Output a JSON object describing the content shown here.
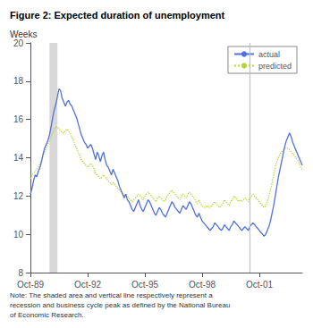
{
  "chart_data": {
    "type": "line",
    "title": "Figure 2: Expected duration of unemployment",
    "ylabel": "Weeks",
    "note": "Note: The shaded area and vertical line respectively represent a\nrecession and business cycle peak as defined by the National Bureau\nof Economic Research.",
    "ylim": [
      8,
      20
    ],
    "yticks": [
      8,
      10,
      12,
      14,
      16,
      18,
      20
    ],
    "grid": false,
    "legend": "upper right",
    "recession": [
      12,
      17
    ],
    "business_cycle_peak": 138,
    "categories": [
      "Oct-89",
      null,
      null,
      null,
      null,
      null,
      null,
      null,
      null,
      null,
      null,
      null,
      null,
      null,
      null,
      null,
      null,
      null,
      null,
      null,
      null,
      null,
      null,
      null,
      null,
      null,
      null,
      null,
      null,
      null,
      null,
      null,
      null,
      null,
      null,
      null,
      "Oct-92",
      null,
      null,
      null,
      null,
      null,
      null,
      null,
      null,
      null,
      null,
      null,
      null,
      null,
      null,
      null,
      null,
      null,
      null,
      null,
      null,
      null,
      null,
      null,
      null,
      null,
      null,
      null,
      null,
      null,
      null,
      null,
      null,
      null,
      null,
      null,
      "Oct-95",
      null,
      null,
      null,
      null,
      null,
      null,
      null,
      null,
      null,
      null,
      null,
      null,
      null,
      null,
      null,
      null,
      null,
      null,
      null,
      null,
      null,
      null,
      null,
      null,
      null,
      null,
      null,
      null,
      null,
      null,
      null,
      null,
      null,
      null,
      null,
      "Oct-98",
      null,
      null,
      null,
      null,
      null,
      null,
      null,
      null,
      null,
      null,
      null,
      null,
      null,
      null,
      null,
      null,
      null,
      null,
      null,
      null,
      null,
      null,
      null,
      null,
      null,
      null,
      null,
      null,
      null,
      null,
      null,
      null,
      null,
      null,
      null,
      "Oct-01",
      null,
      null,
      null,
      null,
      null,
      null,
      null,
      null,
      null,
      null,
      null,
      null,
      null,
      null,
      null,
      null,
      null,
      null,
      null,
      null,
      null,
      null,
      null,
      null,
      null,
      null,
      null
    ],
    "series": [
      {
        "name": "actual",
        "line_style": "solid",
        "values": [
          12.1,
          12.4,
          12.8,
          13.1,
          13.0,
          13.3,
          13.5,
          13.8,
          14.2,
          14.5,
          14.7,
          14.9,
          15.2,
          15.6,
          16.1,
          16.5,
          16.8,
          17.2,
          17.6,
          17.5,
          17.1,
          16.9,
          16.7,
          16.9,
          17.0,
          16.8,
          16.7,
          16.5,
          16.3,
          16.1,
          15.8,
          15.5,
          15.2,
          15.0,
          14.8,
          14.7,
          14.5,
          14.6,
          14.7,
          14.5,
          14.2,
          13.9,
          14.3,
          14.1,
          13.8,
          14.1,
          14.3,
          13.9,
          13.6,
          13.5,
          13.3,
          13.1,
          13.4,
          13.2,
          13.0,
          12.8,
          12.5,
          12.3,
          12.1,
          11.9,
          12.1,
          11.8,
          11.7,
          11.5,
          11.3,
          11.2,
          11.4,
          11.6,
          11.8,
          11.5,
          11.3,
          11.2,
          11.4,
          11.6,
          11.8,
          11.7,
          11.5,
          11.3,
          11.1,
          11.0,
          11.2,
          11.4,
          11.3,
          11.1,
          11.0,
          10.9,
          11.1,
          11.3,
          11.5,
          11.7,
          11.6,
          11.4,
          11.3,
          11.2,
          11.1,
          11.3,
          11.5,
          11.4,
          11.3,
          11.5,
          11.7,
          11.6,
          11.4,
          11.2,
          11.0,
          10.9,
          11.1,
          10.9,
          10.7,
          10.6,
          10.5,
          10.4,
          10.3,
          10.2,
          10.3,
          10.4,
          10.6,
          10.5,
          10.4,
          10.3,
          10.2,
          10.3,
          10.5,
          10.4,
          10.3,
          10.2,
          10.4,
          10.5,
          10.7,
          10.6,
          10.5,
          10.4,
          10.3,
          10.2,
          10.3,
          10.4,
          10.3,
          10.2,
          10.4,
          10.5,
          10.6,
          10.5,
          10.4,
          10.3,
          10.2,
          10.1,
          10.0,
          9.9,
          10.0,
          10.2,
          10.4,
          10.7,
          11.1,
          11.5,
          12.0,
          12.5,
          13.0,
          13.4,
          13.8,
          14.2,
          14.6,
          14.9,
          15.1,
          15.3,
          15.1,
          14.8,
          14.6,
          14.4,
          14.2,
          14.0,
          13.8,
          13.6
        ]
      },
      {
        "name": "predicted",
        "line_style": "dotted",
        "values": [
          12.9,
          13.1,
          13.2,
          13.3,
          13.4,
          13.5,
          13.7,
          13.9,
          14.1,
          14.3,
          14.5,
          14.7,
          14.9,
          15.1,
          15.3,
          15.5,
          15.6,
          15.6,
          15.5,
          15.4,
          15.3,
          15.3,
          15.4,
          15.5,
          15.4,
          15.3,
          15.1,
          14.9,
          14.7,
          14.5,
          14.3,
          14.1,
          13.9,
          13.8,
          13.7,
          13.6,
          13.5,
          13.6,
          13.7,
          13.6,
          13.4,
          13.2,
          13.1,
          13.0,
          12.9,
          13.0,
          13.1,
          13.0,
          12.9,
          12.8,
          12.7,
          12.6,
          12.7,
          12.6,
          12.5,
          12.4,
          12.3,
          12.2,
          12.1,
          12.0,
          12.1,
          12.0,
          11.9,
          11.8,
          11.7,
          11.8,
          11.9,
          12.0,
          12.1,
          12.0,
          11.9,
          11.8,
          12.0,
          12.1,
          12.2,
          12.1,
          12.0,
          11.9,
          11.8,
          11.7,
          11.9,
          12.0,
          11.9,
          11.8,
          11.7,
          11.8,
          12.0,
          12.1,
          12.2,
          12.3,
          12.2,
          12.1,
          12.0,
          11.9,
          11.8,
          12.0,
          12.1,
          12.0,
          11.9,
          12.1,
          12.2,
          12.1,
          12.0,
          11.9,
          11.7,
          11.6,
          11.8,
          11.6,
          11.5,
          11.4,
          11.4,
          11.5,
          11.4,
          11.4,
          11.5,
          11.6,
          11.7,
          11.6,
          11.5,
          11.4,
          11.5,
          11.6,
          11.8,
          11.7,
          11.6,
          11.5,
          11.7,
          11.8,
          12.0,
          11.9,
          11.8,
          11.7,
          11.8,
          11.7,
          11.8,
          11.9,
          11.8,
          11.7,
          11.9,
          12.0,
          12.1,
          12.0,
          11.9,
          11.8,
          11.7,
          11.6,
          11.5,
          11.4,
          11.5,
          11.7,
          12.0,
          12.3,
          12.7,
          13.1,
          13.5,
          13.8,
          14.0,
          14.2,
          14.3,
          14.4,
          14.5,
          14.5,
          14.5,
          14.4,
          14.3,
          14.2,
          14.1,
          14.0,
          13.9,
          13.7,
          13.5,
          13.4
        ]
      }
    ]
  }
}
